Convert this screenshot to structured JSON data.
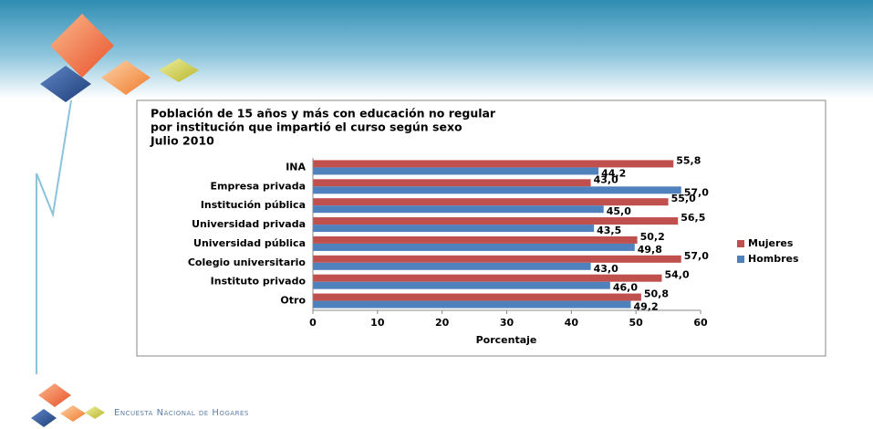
{
  "chart_data": {
    "type": "bar",
    "orientation": "horizontal",
    "title": [
      "Población de 15 años y más con educación no regular",
      "por institución que impartió el curso según sexo",
      "Julio 2010"
    ],
    "categories": [
      "INA",
      "Empresa privada",
      "Institución pública",
      "Universidad privada",
      "Universidad pública",
      "Colegio universitario",
      "Instituto privado",
      "Otro"
    ],
    "series": [
      {
        "name": "Mujeres",
        "color": "#c0504d",
        "values": [
          55.8,
          43.0,
          55.0,
          56.5,
          50.2,
          57.0,
          54.0,
          50.8
        ],
        "value_labels": [
          "55,8",
          "43,0",
          "55,0",
          "56,5",
          "50,2",
          "57,0",
          "54,0",
          "50,8"
        ]
      },
      {
        "name": "Hombres",
        "color": "#4f81bd",
        "values": [
          44.2,
          57.0,
          45.0,
          43.5,
          49.8,
          43.0,
          46.0,
          49.2
        ],
        "value_labels": [
          "44,2",
          "57,0",
          "45,0",
          "43,5",
          "49,8",
          "43,0",
          "46,0",
          "49,2"
        ]
      }
    ],
    "xlabel": "Porcentaje",
    "xlim": [
      0,
      60
    ],
    "xticks": [
      0,
      10,
      20,
      30,
      40,
      50,
      60
    ],
    "grid": false,
    "legend": "right"
  },
  "footer": "Encuesta Nacional de Hogares"
}
